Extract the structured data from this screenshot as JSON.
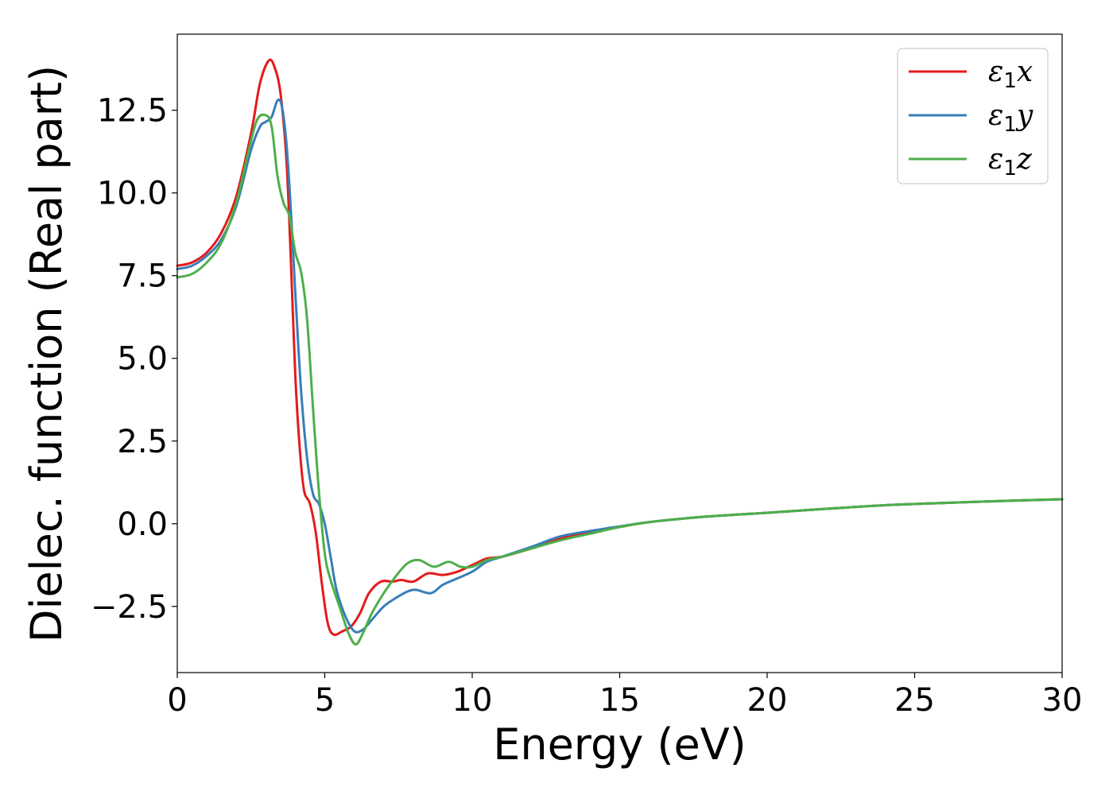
{
  "chart_data": {
    "type": "line",
    "title": "",
    "xlabel": "Energy (eV)",
    "ylabel": "Dielec. function (Real part)",
    "xlim": [
      0,
      30
    ],
    "ylim": [
      -4.5,
      14.8
    ],
    "xticks": [
      0,
      5,
      10,
      15,
      20,
      25,
      30
    ],
    "xtick_labels": [
      "0",
      "5",
      "10",
      "15",
      "20",
      "25",
      "30"
    ],
    "yticks": [
      -2.5,
      0.0,
      2.5,
      5.0,
      7.5,
      10.0,
      12.5
    ],
    "ytick_labels": [
      "−2.5",
      "0.0",
      "2.5",
      "5.0",
      "7.5",
      "10.0",
      "12.5"
    ],
    "grid": false,
    "legend": "top-right",
    "series": [
      {
        "name": "ε₁x",
        "symbol": "ε",
        "subscript": "1",
        "suffix": "x",
        "color": "#e41a1c",
        "points": [
          [
            0,
            7.8
          ],
          [
            0.5,
            7.9
          ],
          [
            1,
            8.2
          ],
          [
            1.5,
            8.8
          ],
          [
            2,
            9.9
          ],
          [
            2.5,
            11.8
          ],
          [
            2.8,
            13.3
          ],
          [
            3.1,
            14.0
          ],
          [
            3.3,
            13.8
          ],
          [
            3.5,
            13.0
          ],
          [
            3.7,
            11.0
          ],
          [
            3.85,
            8.0
          ],
          [
            4.0,
            4.5
          ],
          [
            4.15,
            2.3
          ],
          [
            4.3,
            1.0
          ],
          [
            4.5,
            0.6
          ],
          [
            4.7,
            -0.3
          ],
          [
            4.9,
            -1.8
          ],
          [
            5.1,
            -3.0
          ],
          [
            5.3,
            -3.35
          ],
          [
            5.6,
            -3.25
          ],
          [
            5.9,
            -3.1
          ],
          [
            6.2,
            -2.7
          ],
          [
            6.5,
            -2.1
          ],
          [
            6.9,
            -1.75
          ],
          [
            7.3,
            -1.75
          ],
          [
            7.6,
            -1.7
          ],
          [
            8.0,
            -1.75
          ],
          [
            8.5,
            -1.5
          ],
          [
            9.0,
            -1.55
          ],
          [
            9.5,
            -1.45
          ],
          [
            10.0,
            -1.25
          ],
          [
            10.5,
            -1.05
          ],
          [
            11.0,
            -1.0
          ],
          [
            12.0,
            -0.75
          ],
          [
            13.0,
            -0.45
          ],
          [
            14.0,
            -0.25
          ],
          [
            15.0,
            -0.1
          ],
          [
            16.0,
            0.05
          ],
          [
            18.0,
            0.22
          ],
          [
            20.0,
            0.33
          ],
          [
            22.0,
            0.45
          ],
          [
            24.0,
            0.56
          ],
          [
            26.0,
            0.63
          ],
          [
            28.0,
            0.69
          ],
          [
            30.0,
            0.74
          ]
        ]
      },
      {
        "name": "ε₁y",
        "symbol": "ε",
        "subscript": "1",
        "suffix": "y",
        "color": "#377eb8",
        "points": [
          [
            0,
            7.7
          ],
          [
            0.5,
            7.8
          ],
          [
            1,
            8.1
          ],
          [
            1.5,
            8.6
          ],
          [
            2,
            9.6
          ],
          [
            2.5,
            11.3
          ],
          [
            2.8,
            12.0
          ],
          [
            3.0,
            12.15
          ],
          [
            3.2,
            12.3
          ],
          [
            3.4,
            12.8
          ],
          [
            3.55,
            12.6
          ],
          [
            3.7,
            11.5
          ],
          [
            3.85,
            9.5
          ],
          [
            4.0,
            7.0
          ],
          [
            4.2,
            4.0
          ],
          [
            4.4,
            2.0
          ],
          [
            4.6,
            0.9
          ],
          [
            4.8,
            0.6
          ],
          [
            5.0,
            0.0
          ],
          [
            5.2,
            -1.0
          ],
          [
            5.4,
            -2.0
          ],
          [
            5.7,
            -2.8
          ],
          [
            6.0,
            -3.25
          ],
          [
            6.3,
            -3.2
          ],
          [
            6.6,
            -2.9
          ],
          [
            7.0,
            -2.5
          ],
          [
            7.4,
            -2.25
          ],
          [
            7.8,
            -2.05
          ],
          [
            8.1,
            -2.0
          ],
          [
            8.6,
            -2.1
          ],
          [
            9.0,
            -1.85
          ],
          [
            9.5,
            -1.65
          ],
          [
            10.0,
            -1.45
          ],
          [
            10.5,
            -1.15
          ],
          [
            11.0,
            -1.0
          ],
          [
            12.0,
            -0.7
          ],
          [
            13.0,
            -0.38
          ],
          [
            14.0,
            -0.22
          ],
          [
            15.0,
            -0.08
          ],
          [
            16.0,
            0.05
          ],
          [
            18.0,
            0.22
          ],
          [
            20.0,
            0.33
          ],
          [
            22.0,
            0.45
          ],
          [
            24.0,
            0.56
          ],
          [
            26.0,
            0.63
          ],
          [
            28.0,
            0.69
          ],
          [
            30.0,
            0.74
          ]
        ]
      },
      {
        "name": "ε₁z",
        "symbol": "ε",
        "subscript": "1",
        "suffix": "z",
        "color": "#4daf4a",
        "points": [
          [
            0,
            7.45
          ],
          [
            0.5,
            7.55
          ],
          [
            1,
            7.9
          ],
          [
            1.5,
            8.5
          ],
          [
            2,
            9.7
          ],
          [
            2.4,
            11.2
          ],
          [
            2.7,
            12.2
          ],
          [
            3.0,
            12.35
          ],
          [
            3.2,
            12.0
          ],
          [
            3.4,
            10.5
          ],
          [
            3.6,
            9.7
          ],
          [
            3.8,
            9.3
          ],
          [
            4.0,
            8.2
          ],
          [
            4.2,
            7.6
          ],
          [
            4.4,
            6.2
          ],
          [
            4.6,
            3.5
          ],
          [
            4.8,
            1.0
          ],
          [
            5.0,
            -0.9
          ],
          [
            5.2,
            -1.7
          ],
          [
            5.5,
            -2.5
          ],
          [
            5.8,
            -3.3
          ],
          [
            6.05,
            -3.65
          ],
          [
            6.3,
            -3.3
          ],
          [
            6.6,
            -2.7
          ],
          [
            7.0,
            -2.1
          ],
          [
            7.4,
            -1.6
          ],
          [
            7.8,
            -1.2
          ],
          [
            8.2,
            -1.1
          ],
          [
            8.7,
            -1.3
          ],
          [
            9.2,
            -1.15
          ],
          [
            9.6,
            -1.3
          ],
          [
            10.0,
            -1.3
          ],
          [
            10.5,
            -1.1
          ],
          [
            11.0,
            -1.0
          ],
          [
            12.0,
            -0.75
          ],
          [
            13.0,
            -0.5
          ],
          [
            14.0,
            -0.3
          ],
          [
            15.0,
            -0.1
          ],
          [
            16.0,
            0.05
          ],
          [
            18.0,
            0.22
          ],
          [
            20.0,
            0.33
          ],
          [
            22.0,
            0.45
          ],
          [
            24.0,
            0.56
          ],
          [
            26.0,
            0.63
          ],
          [
            28.0,
            0.69
          ],
          [
            30.0,
            0.74
          ]
        ]
      }
    ]
  }
}
